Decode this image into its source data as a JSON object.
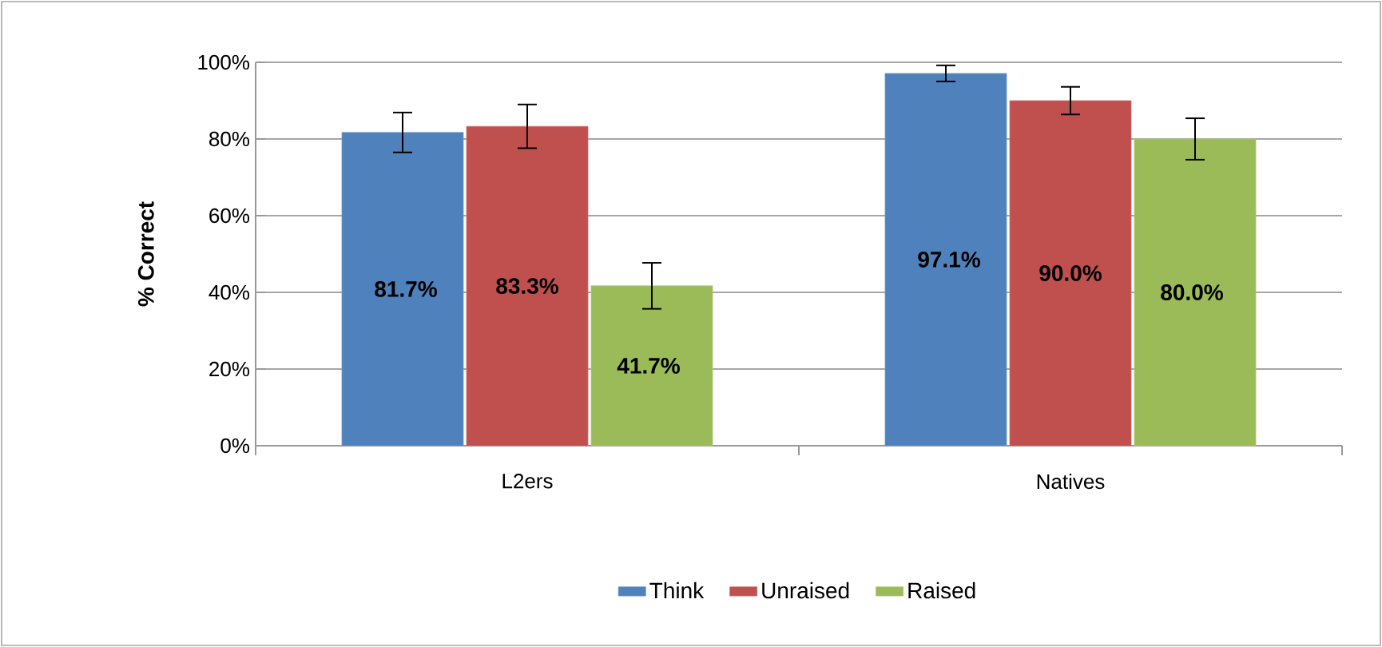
{
  "chart_data": {
    "type": "bar",
    "ylabel": "% Correct",
    "categories": [
      "L2ers",
      "Natives"
    ],
    "series": [
      {
        "name": "Think",
        "color": "#4f81bd",
        "values": [
          81.7,
          97.1
        ],
        "errors": [
          5.2,
          2.1
        ],
        "value_labels": [
          "81.7%",
          "97.1%"
        ]
      },
      {
        "name": "Unraised",
        "color": "#c0504d",
        "values": [
          83.3,
          90.0
        ],
        "errors": [
          5.7,
          3.6
        ],
        "value_labels": [
          "83.3%",
          "90.0%"
        ]
      },
      {
        "name": "Raised",
        "color": "#9bbb59",
        "values": [
          41.7,
          80.0
        ],
        "errors": [
          6.0,
          5.4
        ],
        "value_labels": [
          "41.7%",
          "80.0%"
        ]
      }
    ],
    "ylim": [
      0,
      100
    ],
    "yticks": [
      {
        "value": 0,
        "label": "0%"
      },
      {
        "value": 20,
        "label": "20%"
      },
      {
        "value": 40,
        "label": "40%"
      },
      {
        "value": 60,
        "label": "60%"
      },
      {
        "value": 80,
        "label": "80%"
      },
      {
        "value": 100,
        "label": "100%"
      }
    ],
    "grid": "y",
    "legend": "bottom"
  }
}
